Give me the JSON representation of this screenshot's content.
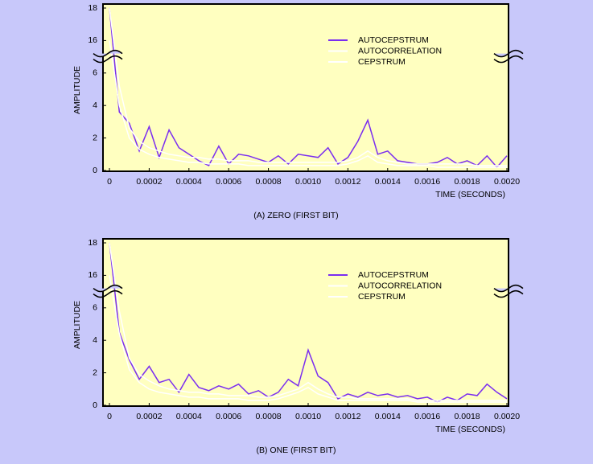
{
  "chart_data": [
    {
      "type": "line",
      "caption": "(A) ZERO (FIRST BIT)",
      "xlabel": "TIME (SECONDS)",
      "ylabel": "AMPLITUDE",
      "x": [
        0,
        5e-05,
        0.0001,
        0.00015,
        0.0002,
        0.00025,
        0.0003,
        0.00035,
        0.0004,
        0.00045,
        0.0005,
        0.00055,
        0.0006,
        0.00065,
        0.0007,
        0.00075,
        0.0008,
        0.00085,
        0.0009,
        0.00095,
        0.001,
        0.00105,
        0.0011,
        0.00115,
        0.0012,
        0.00125,
        0.0013,
        0.00135,
        0.0014,
        0.00145,
        0.0015,
        0.00155,
        0.0016,
        0.00165,
        0.0017,
        0.00175,
        0.0018,
        0.00185,
        0.0019,
        0.00195,
        0.002
      ],
      "series": [
        {
          "name": "AUTOCEPSTRUM",
          "color": "#7a2df0",
          "values": [
            18,
            3.6,
            2.9,
            1.2,
            2.7,
            0.8,
            2.5,
            1.4,
            1.0,
            0.6,
            0.3,
            1.5,
            0.4,
            1.0,
            0.9,
            0.7,
            0.5,
            0.9,
            0.4,
            1.0,
            0.9,
            0.8,
            1.4,
            0.4,
            0.8,
            1.8,
            3.1,
            1.0,
            1.2,
            0.6,
            0.5,
            0.4,
            0.4,
            0.5,
            0.8,
            0.4,
            0.6,
            0.3,
            0.9,
            0.2,
            0.9
          ]
        },
        {
          "name": "AUTOCORRELATION",
          "color": "#ffffff",
          "values": [
            18,
            5.2,
            2.6,
            1.8,
            1.4,
            1.2,
            1.0,
            0.9,
            0.8,
            0.8,
            0.7,
            0.7,
            0.6,
            0.6,
            0.6,
            0.5,
            0.5,
            0.5,
            0.5,
            0.5,
            0.5,
            0.5,
            0.5,
            0.5,
            0.6,
            0.8,
            1.2,
            0.8,
            0.6,
            0.5,
            0.4,
            0.4,
            0.4,
            0.4,
            0.4,
            0.4,
            0.4,
            0.3,
            0.3,
            0.3,
            0.3
          ]
        },
        {
          "name": "CEPSTRUM",
          "color": "#ffffff",
          "values": [
            16,
            4.0,
            2.0,
            1.3,
            1.0,
            0.8,
            0.7,
            0.6,
            0.5,
            0.5,
            0.4,
            0.4,
            0.4,
            0.4,
            0.3,
            0.3,
            0.3,
            0.3,
            0.3,
            0.3,
            0.3,
            0.3,
            0.3,
            0.3,
            0.4,
            0.6,
            0.9,
            0.5,
            0.4,
            0.3,
            0.3,
            0.3,
            0.3,
            0.2,
            0.2,
            0.2,
            0.2,
            0.2,
            0.2,
            0.2,
            0.2
          ]
        }
      ],
      "xlim": [
        0,
        0.002
      ],
      "ylim": [
        0,
        18
      ],
      "axis_break": [
        6,
        16
      ],
      "xticks": [
        0,
        0.0002,
        0.0004,
        0.0006,
        0.0008,
        {
          "value": 0.001,
          "label": "0.0010"
        },
        0.0012,
        0.0014,
        0.0016,
        0.0018,
        {
          "value": 0.002,
          "label": "0.0020"
        }
      ],
      "yticks": [
        0,
        2,
        4,
        6,
        16,
        18
      ],
      "legend": "upper right"
    },
    {
      "type": "line",
      "caption": "(B) ONE (FIRST BIT)",
      "xlabel": "TIME (SECONDS)",
      "ylabel": "AMPLITUDE",
      "x": [
        0,
        5e-05,
        0.0001,
        0.00015,
        0.0002,
        0.00025,
        0.0003,
        0.00035,
        0.0004,
        0.00045,
        0.0005,
        0.00055,
        0.0006,
        0.00065,
        0.0007,
        0.00075,
        0.0008,
        0.00085,
        0.0009,
        0.00095,
        0.001,
        0.00105,
        0.0011,
        0.00115,
        0.0012,
        0.00125,
        0.0013,
        0.00135,
        0.0014,
        0.00145,
        0.0015,
        0.00155,
        0.0016,
        0.00165,
        0.0017,
        0.00175,
        0.0018,
        0.00185,
        0.0019,
        0.00195,
        0.002
      ],
      "series": [
        {
          "name": "AUTOCEPSTRUM",
          "color": "#7a2df0",
          "values": [
            18,
            4.5,
            2.8,
            1.6,
            2.4,
            1.4,
            1.6,
            0.8,
            1.9,
            1.1,
            0.9,
            1.2,
            1.0,
            1.3,
            0.7,
            0.9,
            0.5,
            0.8,
            1.6,
            1.2,
            3.4,
            1.8,
            1.4,
            0.4,
            0.7,
            0.5,
            0.8,
            0.6,
            0.7,
            0.5,
            0.6,
            0.4,
            0.5,
            0.2,
            0.5,
            0.3,
            0.7,
            0.6,
            1.3,
            0.8,
            0.4
          ]
        },
        {
          "name": "AUTOCORRELATION",
          "color": "#ffffff",
          "values": [
            18,
            5.8,
            2.9,
            1.9,
            1.5,
            1.2,
            1.0,
            0.9,
            0.8,
            0.8,
            0.7,
            0.7,
            0.6,
            0.6,
            0.6,
            0.5,
            0.5,
            0.6,
            0.8,
            1.0,
            1.4,
            1.0,
            0.7,
            0.5,
            0.5,
            0.4,
            0.4,
            0.4,
            0.4,
            0.4,
            0.4,
            0.3,
            0.3,
            0.3,
            0.3,
            0.3,
            0.3,
            0.3,
            0.3,
            0.3,
            0.3
          ]
        },
        {
          "name": "CEPSTRUM",
          "color": "#ffffff",
          "values": [
            16,
            4.4,
            2.2,
            1.4,
            1.0,
            0.8,
            0.7,
            0.6,
            0.5,
            0.5,
            0.4,
            0.4,
            0.4,
            0.4,
            0.3,
            0.3,
            0.3,
            0.4,
            0.6,
            0.8,
            1.1,
            0.7,
            0.5,
            0.3,
            0.3,
            0.3,
            0.3,
            0.3,
            0.3,
            0.3,
            0.3,
            0.2,
            0.2,
            0.2,
            0.2,
            0.2,
            0.2,
            0.2,
            0.2,
            0.2,
            0.2
          ]
        }
      ],
      "xlim": [
        0,
        0.002
      ],
      "ylim": [
        0,
        18
      ],
      "axis_break": [
        6,
        16
      ],
      "xticks": [
        0,
        0.0002,
        0.0004,
        0.0006,
        0.0008,
        {
          "value": 0.001,
          "label": "0.0010"
        },
        0.0012,
        0.0014,
        0.0016,
        0.0018,
        {
          "value": 0.002,
          "label": "0.0020"
        }
      ],
      "yticks": [
        0,
        2,
        4,
        6,
        16,
        18
      ],
      "legend": "upper right"
    }
  ]
}
